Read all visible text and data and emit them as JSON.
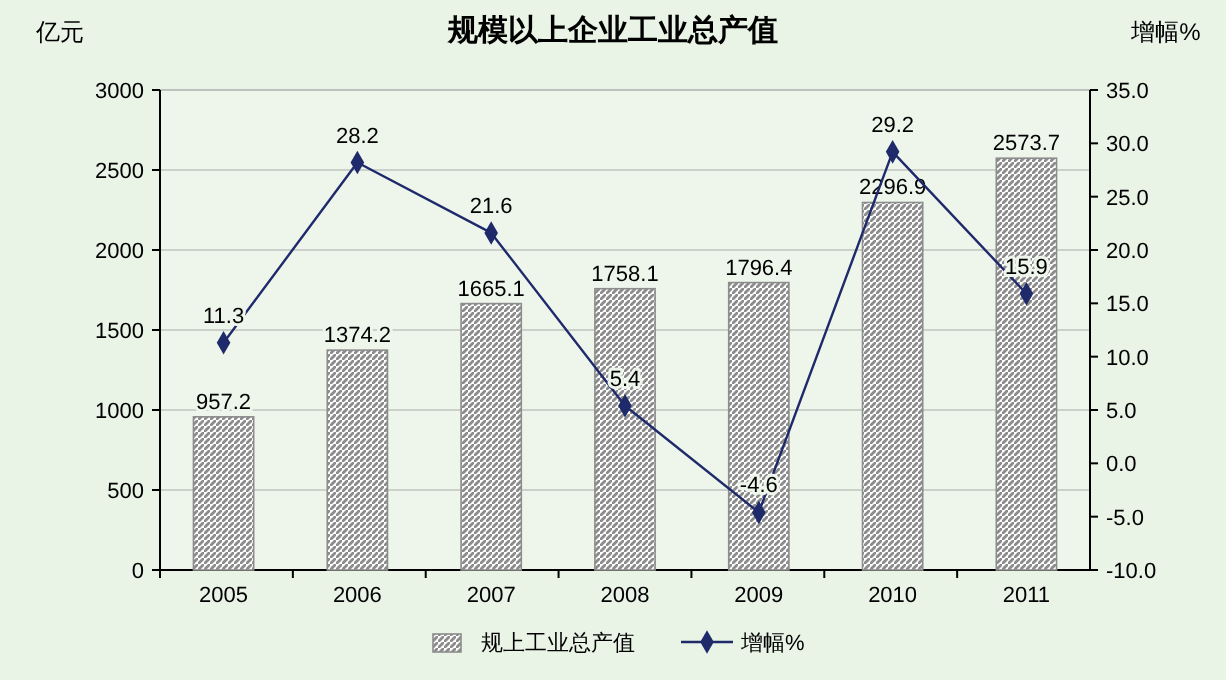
{
  "chart_data": {
    "type": "bar",
    "title": "规模以上企业工业总产值",
    "ylabel": "亿元",
    "y2label": "增幅%",
    "categories": [
      "2005",
      "2006",
      "2007",
      "2008",
      "2009",
      "2010",
      "2011"
    ],
    "series": [
      {
        "name": "规上工业总产值",
        "color": "#8c8c8c",
        "values": [
          957.2,
          1374.2,
          1665.1,
          1758.1,
          1796.4,
          2296.9,
          2573.7
        ]
      },
      {
        "name": "增幅%",
        "type": "line",
        "axis": "y2",
        "color": "#1f2a6b",
        "values": [
          11.3,
          28.2,
          21.6,
          5.4,
          -4.6,
          29.2,
          15.9
        ]
      }
    ],
    "ylim": [
      0,
      3000
    ],
    "yticks": [
      0,
      500,
      1000,
      1500,
      2000,
      2500,
      3000
    ],
    "y2lim": [
      -10,
      35
    ],
    "y2ticks": [
      {
        "value": -10,
        "label": "-10.0"
      },
      {
        "value": -5,
        "label": "-5.0"
      },
      {
        "value": 0,
        "label": "0.0"
      },
      {
        "value": 5,
        "label": "5.0"
      },
      {
        "value": 10,
        "label": "10.0"
      },
      {
        "value": 15,
        "label": "15.0"
      },
      {
        "value": 20,
        "label": "20.0"
      },
      {
        "value": 25,
        "label": "25.0"
      },
      {
        "value": 30,
        "label": "30.0"
      },
      {
        "value": 35,
        "label": "35.0"
      }
    ],
    "data_labels": true,
    "grid": "y",
    "legend": "bottom",
    "marker": "diamond",
    "line_style": "solid"
  }
}
